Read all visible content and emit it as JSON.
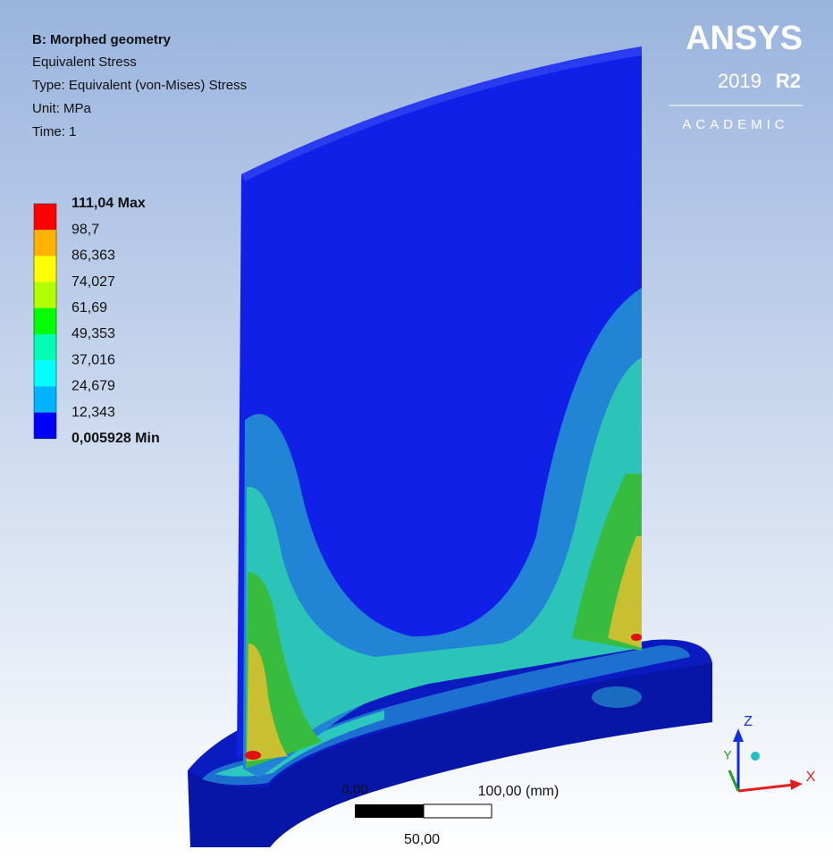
{
  "header": {
    "title": "B: Morphed geometry",
    "lines": [
      "Equivalent Stress",
      "Type: Equivalent (von-Mises) Stress",
      "Unit: MPa",
      "Time: 1"
    ]
  },
  "legend": {
    "labels": [
      "111,04 Max",
      "98,7",
      "86,363",
      "74,027",
      "61,69",
      "49,353",
      "37,016",
      "24,679",
      "12,343",
      "0,005928 Min"
    ],
    "colors": [
      "#ff0000",
      "#ffb200",
      "#ffff00",
      "#b2ff00",
      "#00ff00",
      "#00ffb2",
      "#00ffff",
      "#00b2ff",
      "#0000ff"
    ]
  },
  "logo": {
    "name": "ANSYS",
    "version": "2019",
    "release": "R2",
    "edition": "ACADEMIC"
  },
  "scale_bar": {
    "start": "0,00",
    "end": "100,00 (mm)",
    "mid": "50,00"
  },
  "triad": {
    "z": "Z",
    "y": "Y",
    "x": "X"
  }
}
